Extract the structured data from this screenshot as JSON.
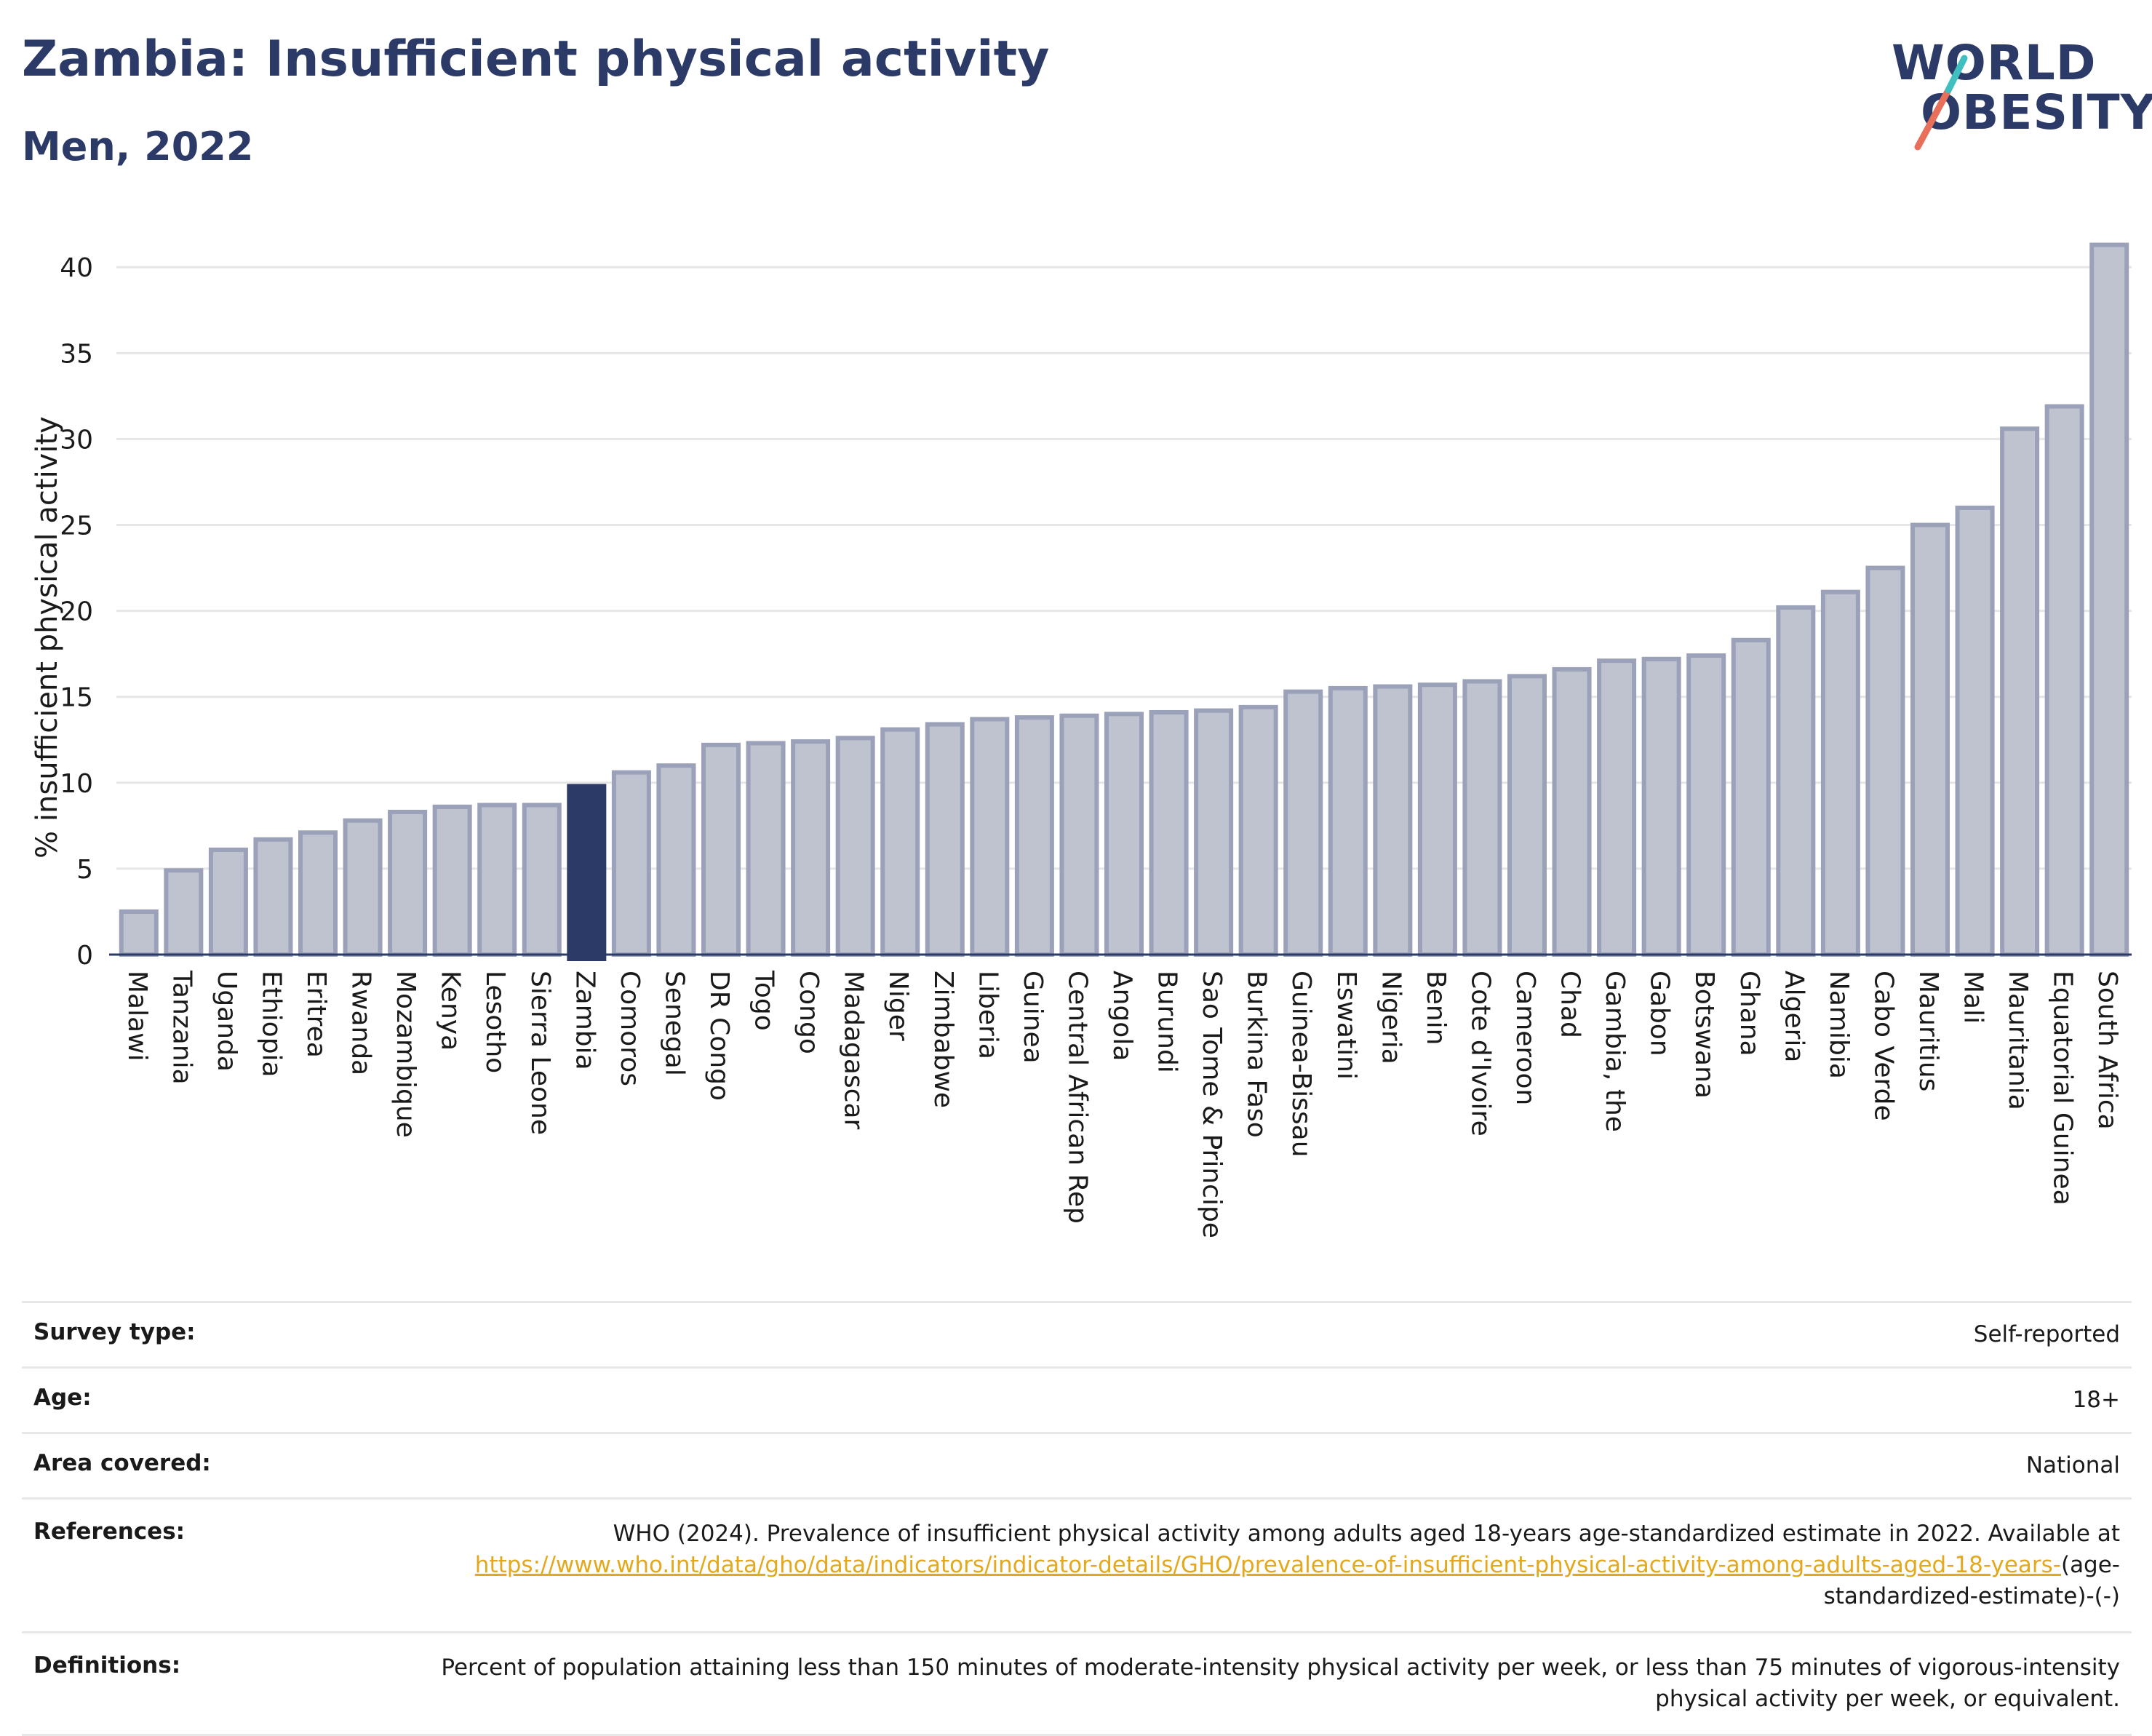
{
  "header": {
    "title": "Zambia: Insufficient physical activity",
    "subtitle": "Men, 2022"
  },
  "logo": {
    "line1": "WORLD",
    "line2": "OBESITY",
    "accent_colors": [
      "#e8705a",
      "#3fbfbf"
    ]
  },
  "colors": {
    "highlight": "#2b3a67",
    "bar_fill": "#bfc3d0",
    "bar_stroke": "#9aa1b8",
    "link": "#e3a81c"
  },
  "chart_data": {
    "type": "bar",
    "ylabel": "% insufficient physical activity",
    "ylim": [
      0,
      42
    ],
    "yticks": [
      0,
      5,
      10,
      15,
      20,
      25,
      30,
      35,
      40
    ],
    "grid": true,
    "highlight_category": "Zambia",
    "categories": [
      "Malawi",
      "Tanzania",
      "Uganda",
      "Ethiopia",
      "Eritrea",
      "Rwanda",
      "Mozambique",
      "Kenya",
      "Lesotho",
      "Sierra Leone",
      "Zambia",
      "Comoros",
      "Senegal",
      "DR Congo",
      "Togo",
      "Congo",
      "Madagascar",
      "Niger",
      "Zimbabwe",
      "Liberia",
      "Guinea",
      "Central African Rep",
      "Angola",
      "Burundi",
      "Sao Tome & Principe",
      "Burkina Faso",
      "Guinea-Bissau",
      "Eswatini",
      "Nigeria",
      "Benin",
      "Cote d'Ivoire",
      "Cameroon",
      "Chad",
      "Gambia, the",
      "Gabon",
      "Botswana",
      "Ghana",
      "Algeria",
      "Namibia",
      "Cabo Verde",
      "Mauritius",
      "Mali",
      "Mauritania",
      "Equatorial Guinea",
      "South Africa"
    ],
    "values": [
      2.5,
      4.9,
      6.1,
      6.7,
      7.1,
      7.8,
      8.3,
      8.6,
      8.7,
      8.7,
      9.8,
      10.6,
      11.0,
      12.2,
      12.3,
      12.4,
      12.6,
      13.1,
      13.4,
      13.7,
      13.8,
      13.9,
      14.0,
      14.1,
      14.2,
      14.4,
      15.3,
      15.5,
      15.6,
      15.7,
      15.9,
      16.2,
      16.6,
      17.1,
      17.2,
      17.4,
      18.3,
      20.2,
      21.1,
      22.5,
      25.0,
      26.0,
      30.6,
      31.9,
      41.3
    ]
  },
  "info": {
    "survey_type": {
      "label": "Survey type:",
      "value": "Self-reported"
    },
    "age": {
      "label": "Age:",
      "value": "18+"
    },
    "area": {
      "label": "Area covered:",
      "value": "National"
    },
    "references": {
      "label": "References:",
      "text_before": "WHO (2024). Prevalence of insufficient physical activity among adults aged 18-years age-standardized estimate in 2022. Available at",
      "link_text": "https://www.who.int/data/gho/data/indicators/indicator-details/GHO/prevalence-of-insufficient-physical-activity-among-adults-aged-18-years-",
      "text_after": "(age-standardized-estimate)-(-)"
    },
    "definitions": {
      "label": "Definitions:",
      "value": "Percent of population attaining less than 150 minutes of moderate-intensity physical activity per week, or less than 75 minutes of vigorous-intensity physical activity per week, or equivalent."
    }
  }
}
